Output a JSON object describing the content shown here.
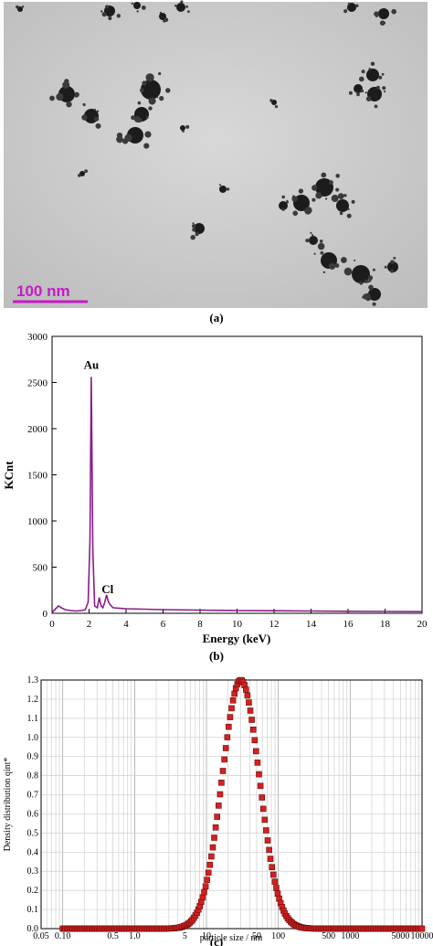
{
  "panel_a": {
    "caption": "(a)",
    "scale_bar_label": "100 nm",
    "scale_bar_color": "#c819c8"
  },
  "chart_data": [
    {
      "id": "b",
      "type": "line",
      "caption": "(b)",
      "xlabel": "Energy (keV)",
      "ylabel": "KCnt",
      "xlim": [
        0,
        20
      ],
      "ylim": [
        0,
        3000
      ],
      "xticks": [
        0,
        2,
        4,
        6,
        8,
        10,
        12,
        14,
        16,
        18,
        20
      ],
      "yticks": [
        0,
        500,
        1000,
        1500,
        2000,
        2500,
        3000
      ],
      "color": "#8b1a8b",
      "annotations": [
        {
          "text": "Au",
          "x": 2.12,
          "y": 2650
        },
        {
          "text": "Cl",
          "x": 3.0,
          "y": 220
        }
      ],
      "series": [
        {
          "x": [
            0,
            0.2,
            0.35,
            0.5,
            0.7,
            1.0,
            1.3,
            1.6,
            1.8,
            1.95,
            2.05,
            2.12,
            2.2,
            2.3,
            2.45,
            2.55,
            2.65,
            2.75,
            2.85,
            2.95,
            3.05,
            3.15,
            3.3,
            3.6,
            4.0,
            5.0,
            6.0,
            8.0,
            10.0,
            12.0,
            14.0,
            16.0,
            18.0,
            20.0
          ],
          "y": [
            10,
            50,
            80,
            60,
            40,
            30,
            25,
            30,
            40,
            120,
            800,
            2560,
            700,
            80,
            60,
            170,
            80,
            60,
            120,
            200,
            120,
            90,
            60,
            55,
            50,
            45,
            40,
            35,
            30,
            28,
            25,
            22,
            20,
            18
          ]
        }
      ]
    },
    {
      "id": "c",
      "type": "scatter",
      "caption": "(c)",
      "xlabel": "particle size / nm",
      "ylabel": "Density distribution qint*",
      "xscale": "log",
      "xlim": [
        0.05,
        10000
      ],
      "ylim": [
        0,
        1.3
      ],
      "xticks": [
        {
          "v": 0.05,
          "l": "0.05"
        },
        {
          "v": 0.1,
          "l": "0.10"
        },
        {
          "v": 0.5,
          "l": "0.5"
        },
        {
          "v": 1,
          "l": "1.0"
        },
        {
          "v": 5,
          "l": "5"
        },
        {
          "v": 10,
          "l": "10"
        },
        {
          "v": 50,
          "l": "50"
        },
        {
          "v": 100,
          "l": "100"
        },
        {
          "v": 500,
          "l": "500"
        },
        {
          "v": 1000,
          "l": "1000"
        },
        {
          "v": 5000,
          "l": "5000"
        },
        {
          "v": 10000,
          "l": "10000"
        }
      ],
      "yticks": [
        0,
        0.1,
        0.2,
        0.3,
        0.4,
        0.5,
        0.6,
        0.7,
        0.8,
        0.9,
        1.0,
        1.1,
        1.2,
        1.3
      ],
      "marker_fill": "#d42020",
      "marker_stroke": "#6b0d0d",
      "distribution": {
        "kind": "log-normal",
        "peak_size_nm": 30,
        "peak_density": 1.3,
        "log10_sigma": 0.26,
        "x_min": 0.1,
        "x_max": 10000,
        "point_count": 250
      }
    }
  ]
}
